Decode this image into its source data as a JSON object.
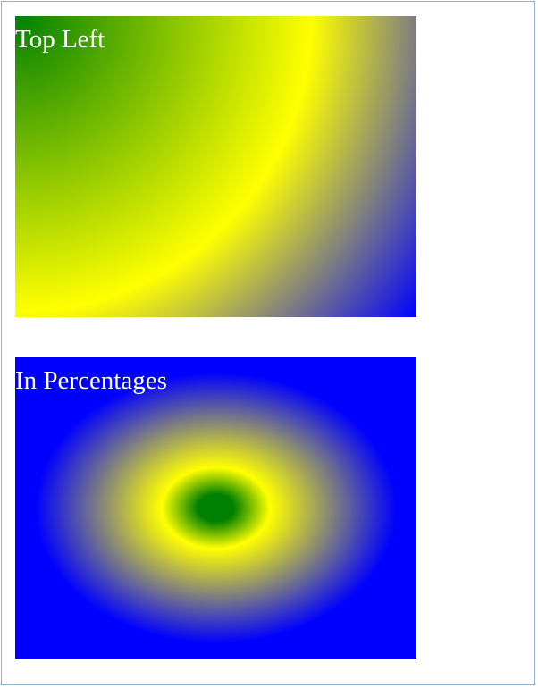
{
  "boxes": [
    {
      "label": "Top Left",
      "gradient_colors": [
        "#008000",
        "#ffff00",
        "#0000ff"
      ]
    },
    {
      "label": "In Percentages",
      "gradient_colors": [
        "#008000",
        "#ffff00",
        "#0000ff"
      ]
    }
  ],
  "colors": {
    "label_text": "#ffffff",
    "frame_border": "#8fb4cf",
    "background": "#ffffff"
  }
}
